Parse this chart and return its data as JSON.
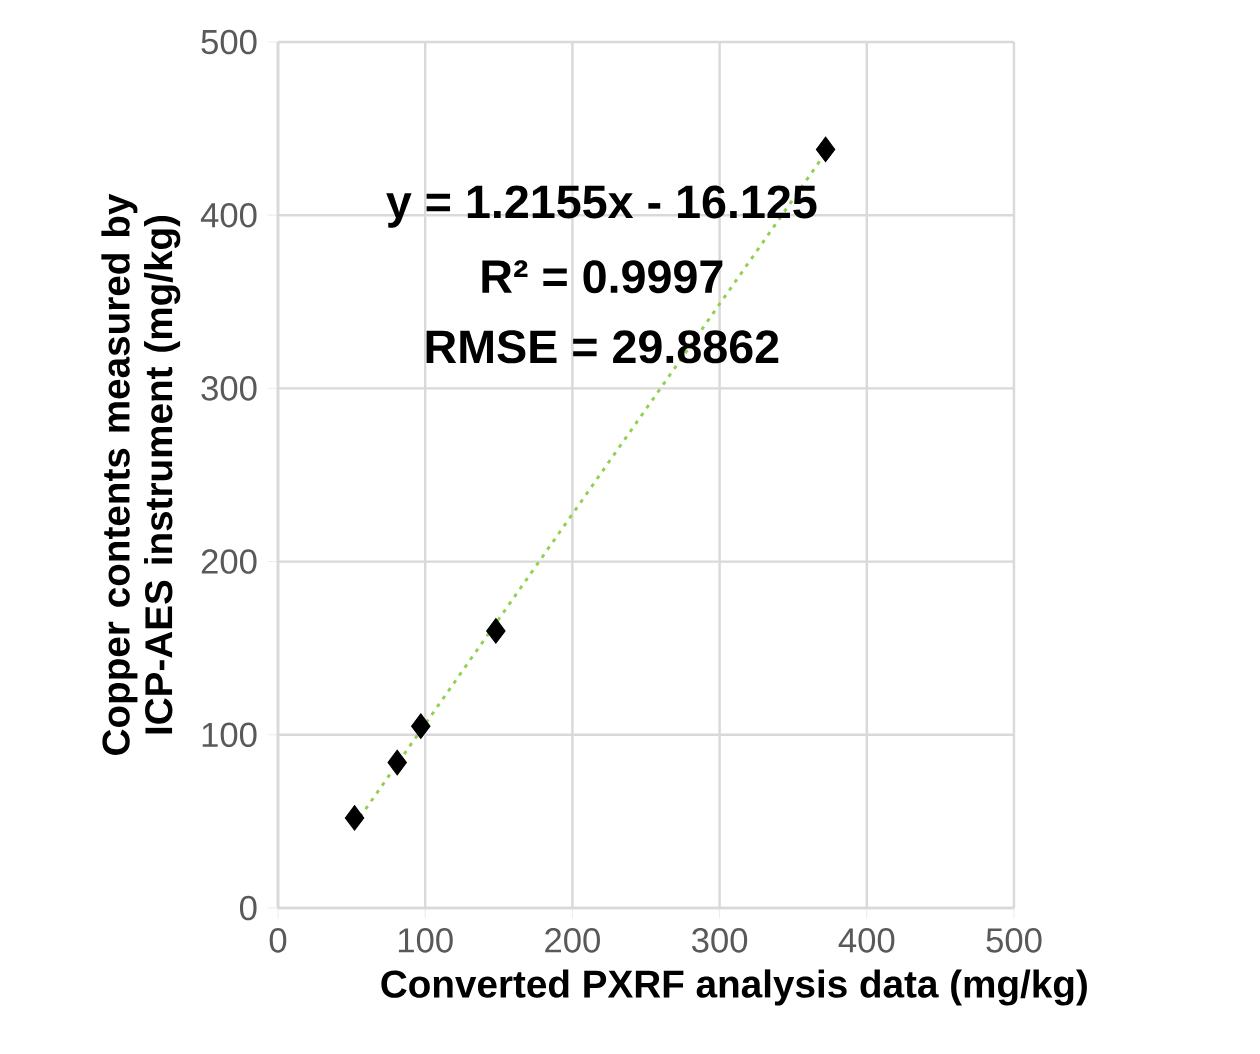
{
  "chart_data": {
    "type": "scatter",
    "xlabel": "Converted PXRF analysis data (mg/kg)",
    "ylabel": "Copper contents measured by ICP-AES instrument (mg/kg)",
    "series": [
      {
        "color": "#000000",
        "marker": "diamond",
        "x": [
          52,
          81,
          97,
          148,
          372
        ],
        "values": [
          52,
          84,
          105,
          160,
          438
        ]
      },
      {
        "type": "line",
        "color": "#92d050",
        "line_style": "dotted",
        "marker": "none",
        "x": [
          52,
          372
        ],
        "values": [
          48,
          436
        ]
      }
    ],
    "annotations": [
      "y = 1.2155x - 16.125",
      "R² = 0.9997",
      "RMSE = 29.8862"
    ],
    "xlim": [
      0,
      500
    ],
    "ylim": [
      0,
      500
    ],
    "xticks": [
      0,
      100,
      200,
      300,
      400,
      500
    ],
    "yticks": [
      0,
      100,
      200,
      300,
      400,
      500
    ],
    "grid": true,
    "legend": false
  }
}
